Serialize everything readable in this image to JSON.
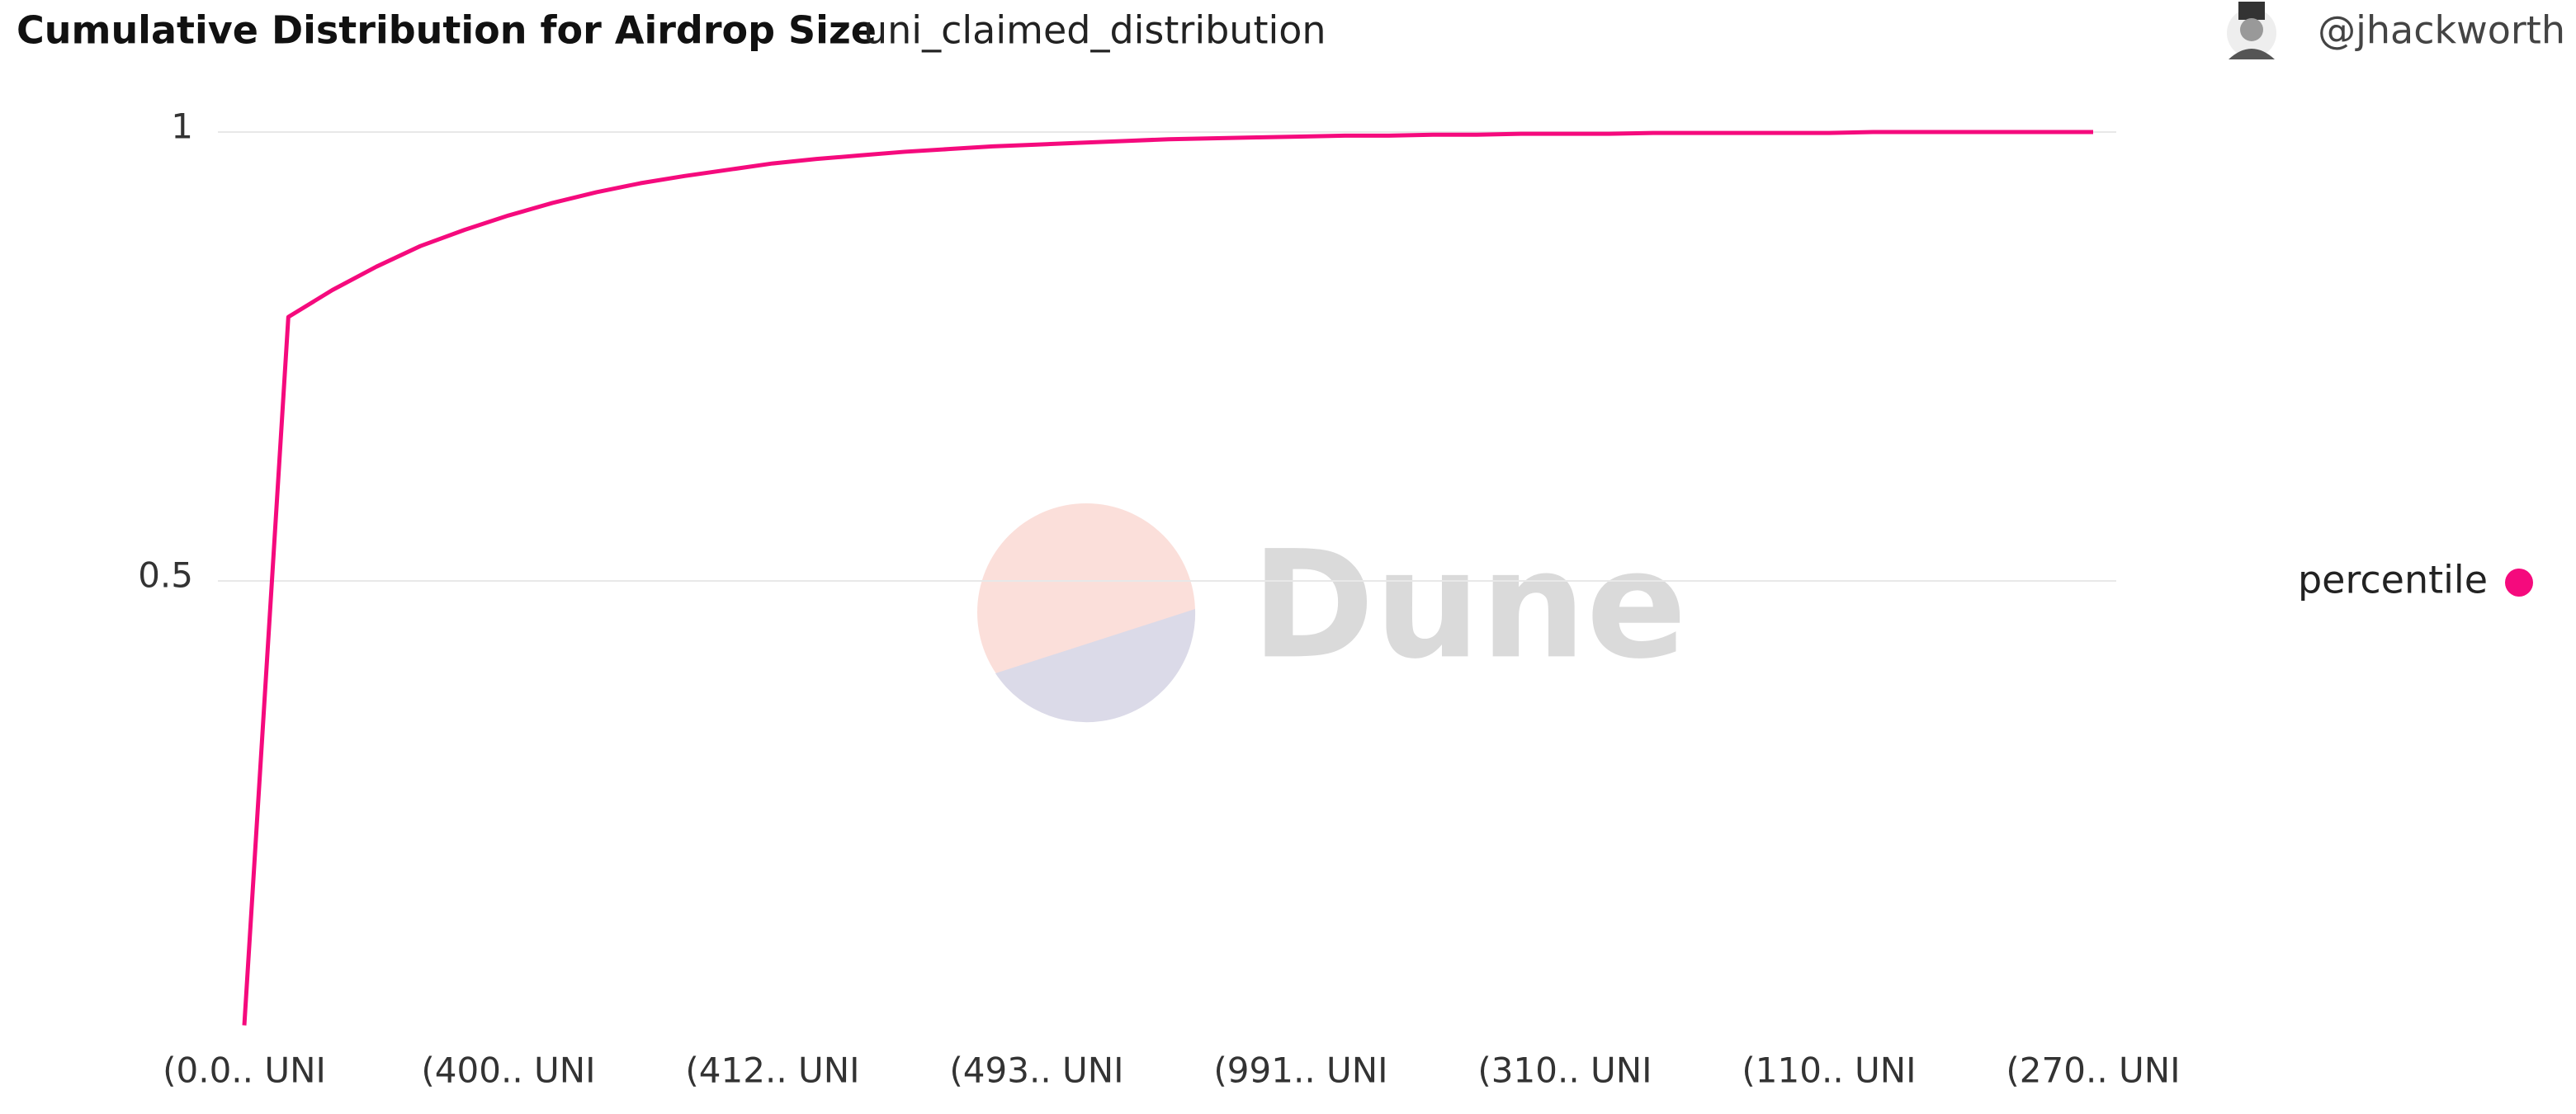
{
  "chart_data": {
    "type": "line",
    "title": "Cumulative Distribution for Airdrop Size",
    "subtitle": "uni_claimed_distribution",
    "author": "@jhackworth",
    "watermark": "Dune",
    "categories": [
      "(0.0.. UNI",
      null,
      null,
      null,
      null,
      null,
      "(400.. UNI",
      null,
      null,
      null,
      null,
      null,
      "(412.. UNI",
      null,
      null,
      null,
      null,
      null,
      "(493.. UNI",
      null,
      null,
      null,
      null,
      null,
      "(991.. UNI",
      null,
      null,
      null,
      null,
      null,
      "(310.. UNI",
      null,
      null,
      null,
      null,
      null,
      "(110.. UNI",
      null,
      null,
      null,
      null,
      null,
      "(270.. UNI"
    ],
    "series": [
      {
        "name": "percentile",
        "color": "#f50a7d",
        "values": [
          0.005,
          0.794,
          0.824,
          0.85,
          0.873,
          0.891,
          0.907,
          0.921,
          0.933,
          0.943,
          0.951,
          0.958,
          0.965,
          0.97,
          0.974,
          0.978,
          0.981,
          0.984,
          0.986,
          0.988,
          0.99,
          0.992,
          0.993,
          0.994,
          0.995,
          0.996,
          0.996,
          0.997,
          0.997,
          0.998,
          0.998,
          0.998,
          0.999,
          0.999,
          0.999,
          0.999,
          0.999,
          1,
          1,
          1,
          1,
          1,
          1
        ]
      }
    ],
    "ylim": [
      0,
      1
    ],
    "yticks": [
      0.5,
      1
    ],
    "grid": true,
    "legend": "right"
  }
}
